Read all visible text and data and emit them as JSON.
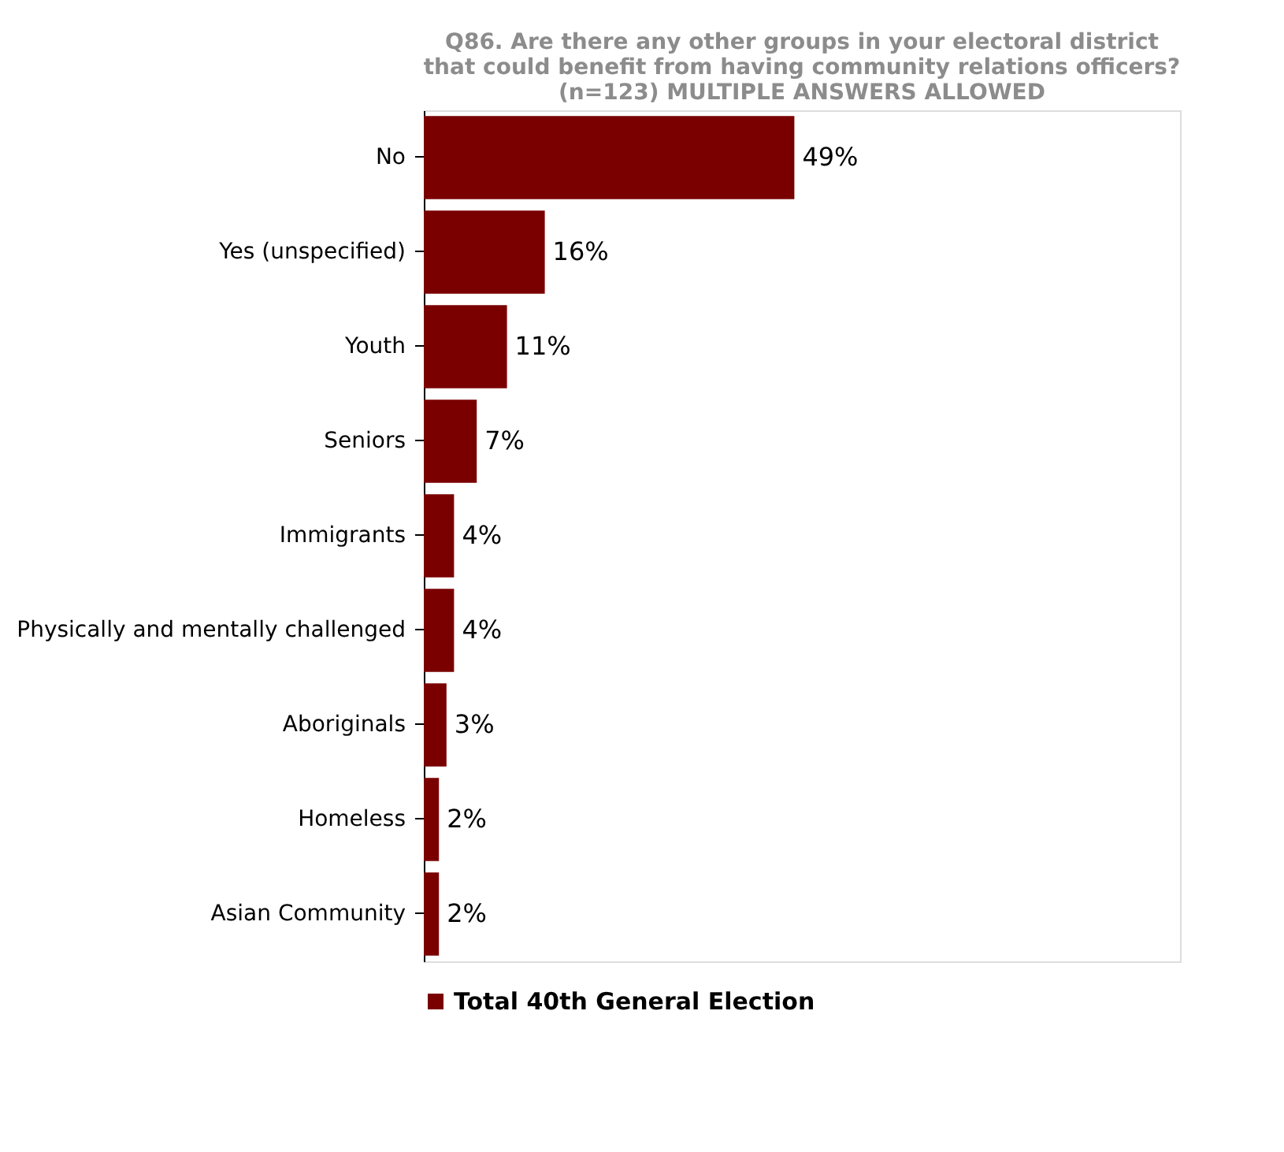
{
  "chart_data": {
    "type": "bar",
    "orientation": "horizontal",
    "title": "Q86. Are there any other groups in your electoral district that could benefit from having community relations officers? (n=123) MULTIPLE ANSWERS ALLOWED",
    "categories": [
      "No",
      "Yes (unspecified)",
      "Youth",
      "Seniors",
      "Immigrants",
      "Physically and mentally challenged",
      "Aboriginals",
      "Homeless",
      "Asian Community"
    ],
    "series": [
      {
        "name": "Total 40th General Election",
        "color": "#7a0000",
        "values": [
          49,
          16,
          11,
          7,
          4,
          4,
          3,
          2,
          2
        ],
        "value_labels": [
          "49%",
          "16%",
          "11%",
          "7%",
          "4%",
          "4%",
          "3%",
          "2%",
          "2%"
        ]
      }
    ],
    "xlim": [
      0,
      100
    ],
    "grid": false,
    "legend": "bottom"
  }
}
